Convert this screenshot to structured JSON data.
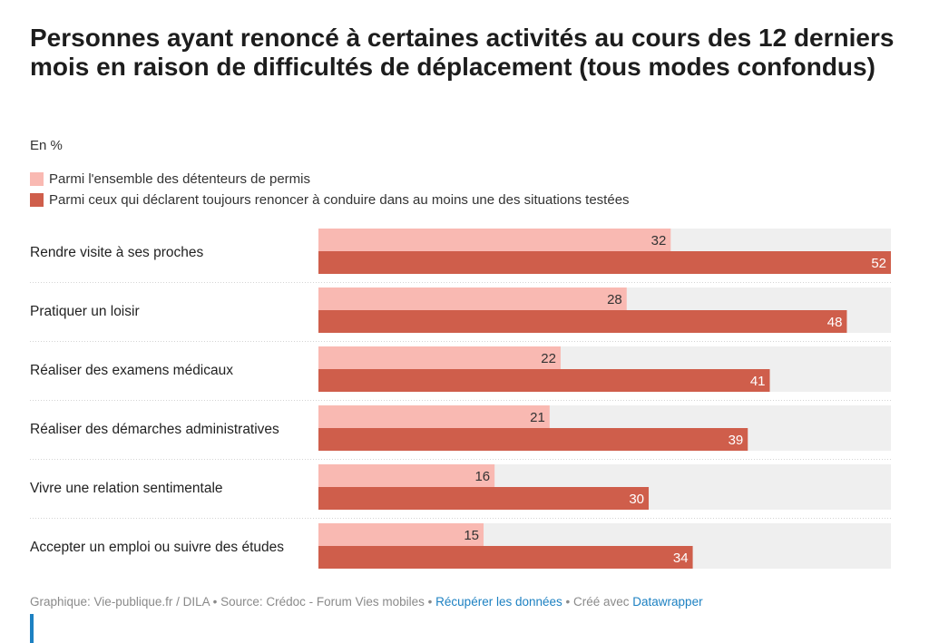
{
  "header": {
    "title": "Personnes ayant renoncé à certaines activités au cours des 12 derniers mois en raison de difficultés de déplacement (tous modes confondus)",
    "unit": "En %"
  },
  "colors": {
    "series_light": "#f9b9b2",
    "series_dark": "#cf5e4b",
    "track": "#efefef",
    "link": "#1d81c2"
  },
  "chart_data": {
    "type": "bar",
    "orientation": "horizontal",
    "categories": [
      "Rendre visite à ses proches",
      "Pratiquer un loisir",
      "Réaliser des examens médicaux",
      "Réaliser des démarches administratives",
      "Vivre une relation sentimentale",
      "Accepter un emploi ou suivre des études"
    ],
    "series": [
      {
        "name": "Parmi l'ensemble des détenteurs de permis",
        "values": [
          32,
          28,
          22,
          21,
          16,
          15
        ]
      },
      {
        "name": "Parmi ceux qui déclarent toujours renoncer à conduire dans au moins une des situations testées",
        "values": [
          52,
          48,
          41,
          39,
          30,
          34
        ]
      }
    ],
    "xlim": [
      0,
      52
    ],
    "legend": "top"
  },
  "footer": {
    "source_text": "Graphique: Vie-publique.fr / DILA • Source: Crédoc - Forum Vies mobiles • ",
    "download_link": "Récupérer les données",
    "separator": " • Créé avec ",
    "tool_link": "Datawrapper"
  }
}
